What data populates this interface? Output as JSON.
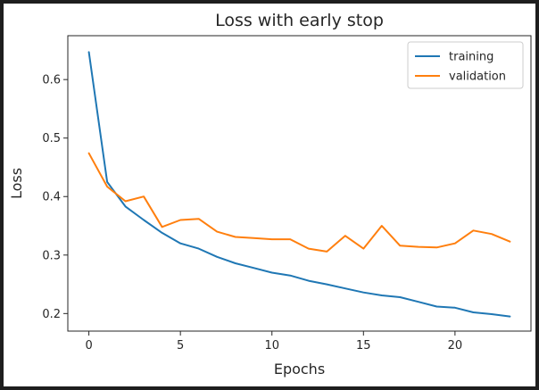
{
  "chart_data": {
    "type": "line",
    "title": "Loss with early stop",
    "xlabel": "Epochs",
    "ylabel": "Loss",
    "xlim": [
      -1.15,
      24.15
    ],
    "ylim": [
      0.17,
      0.675
    ],
    "x_ticks": [
      0,
      5,
      10,
      15,
      20
    ],
    "y_ticks": [
      0.2,
      0.3,
      0.4,
      0.5,
      0.6
    ],
    "x_tick_labels": [
      "0",
      "5",
      "10",
      "15",
      "20"
    ],
    "y_tick_labels": [
      "0.2",
      "0.3",
      "0.4",
      "0.5",
      "0.6"
    ],
    "grid": false,
    "legend": "top-right",
    "x": [
      0,
      1,
      2,
      3,
      4,
      5,
      6,
      7,
      8,
      9,
      10,
      11,
      12,
      13,
      14,
      15,
      16,
      17,
      18,
      19,
      20,
      21,
      22,
      23
    ],
    "series": [
      {
        "name": "training",
        "color": "#1f77b4",
        "values": [
          0.647,
          0.425,
          0.383,
          0.36,
          0.338,
          0.32,
          0.311,
          0.297,
          0.286,
          0.278,
          0.27,
          0.265,
          0.256,
          0.25,
          0.243,
          0.236,
          0.231,
          0.228,
          0.22,
          0.212,
          0.21,
          0.202,
          0.199,
          0.195
        ]
      },
      {
        "name": "validation",
        "color": "#ff7f0e",
        "values": [
          0.474,
          0.417,
          0.392,
          0.4,
          0.348,
          0.36,
          0.362,
          0.34,
          0.331,
          0.329,
          0.327,
          0.327,
          0.311,
          0.306,
          0.333,
          0.311,
          0.35,
          0.316,
          0.314,
          0.313,
          0.32,
          0.342,
          0.336,
          0.323
        ]
      }
    ]
  }
}
